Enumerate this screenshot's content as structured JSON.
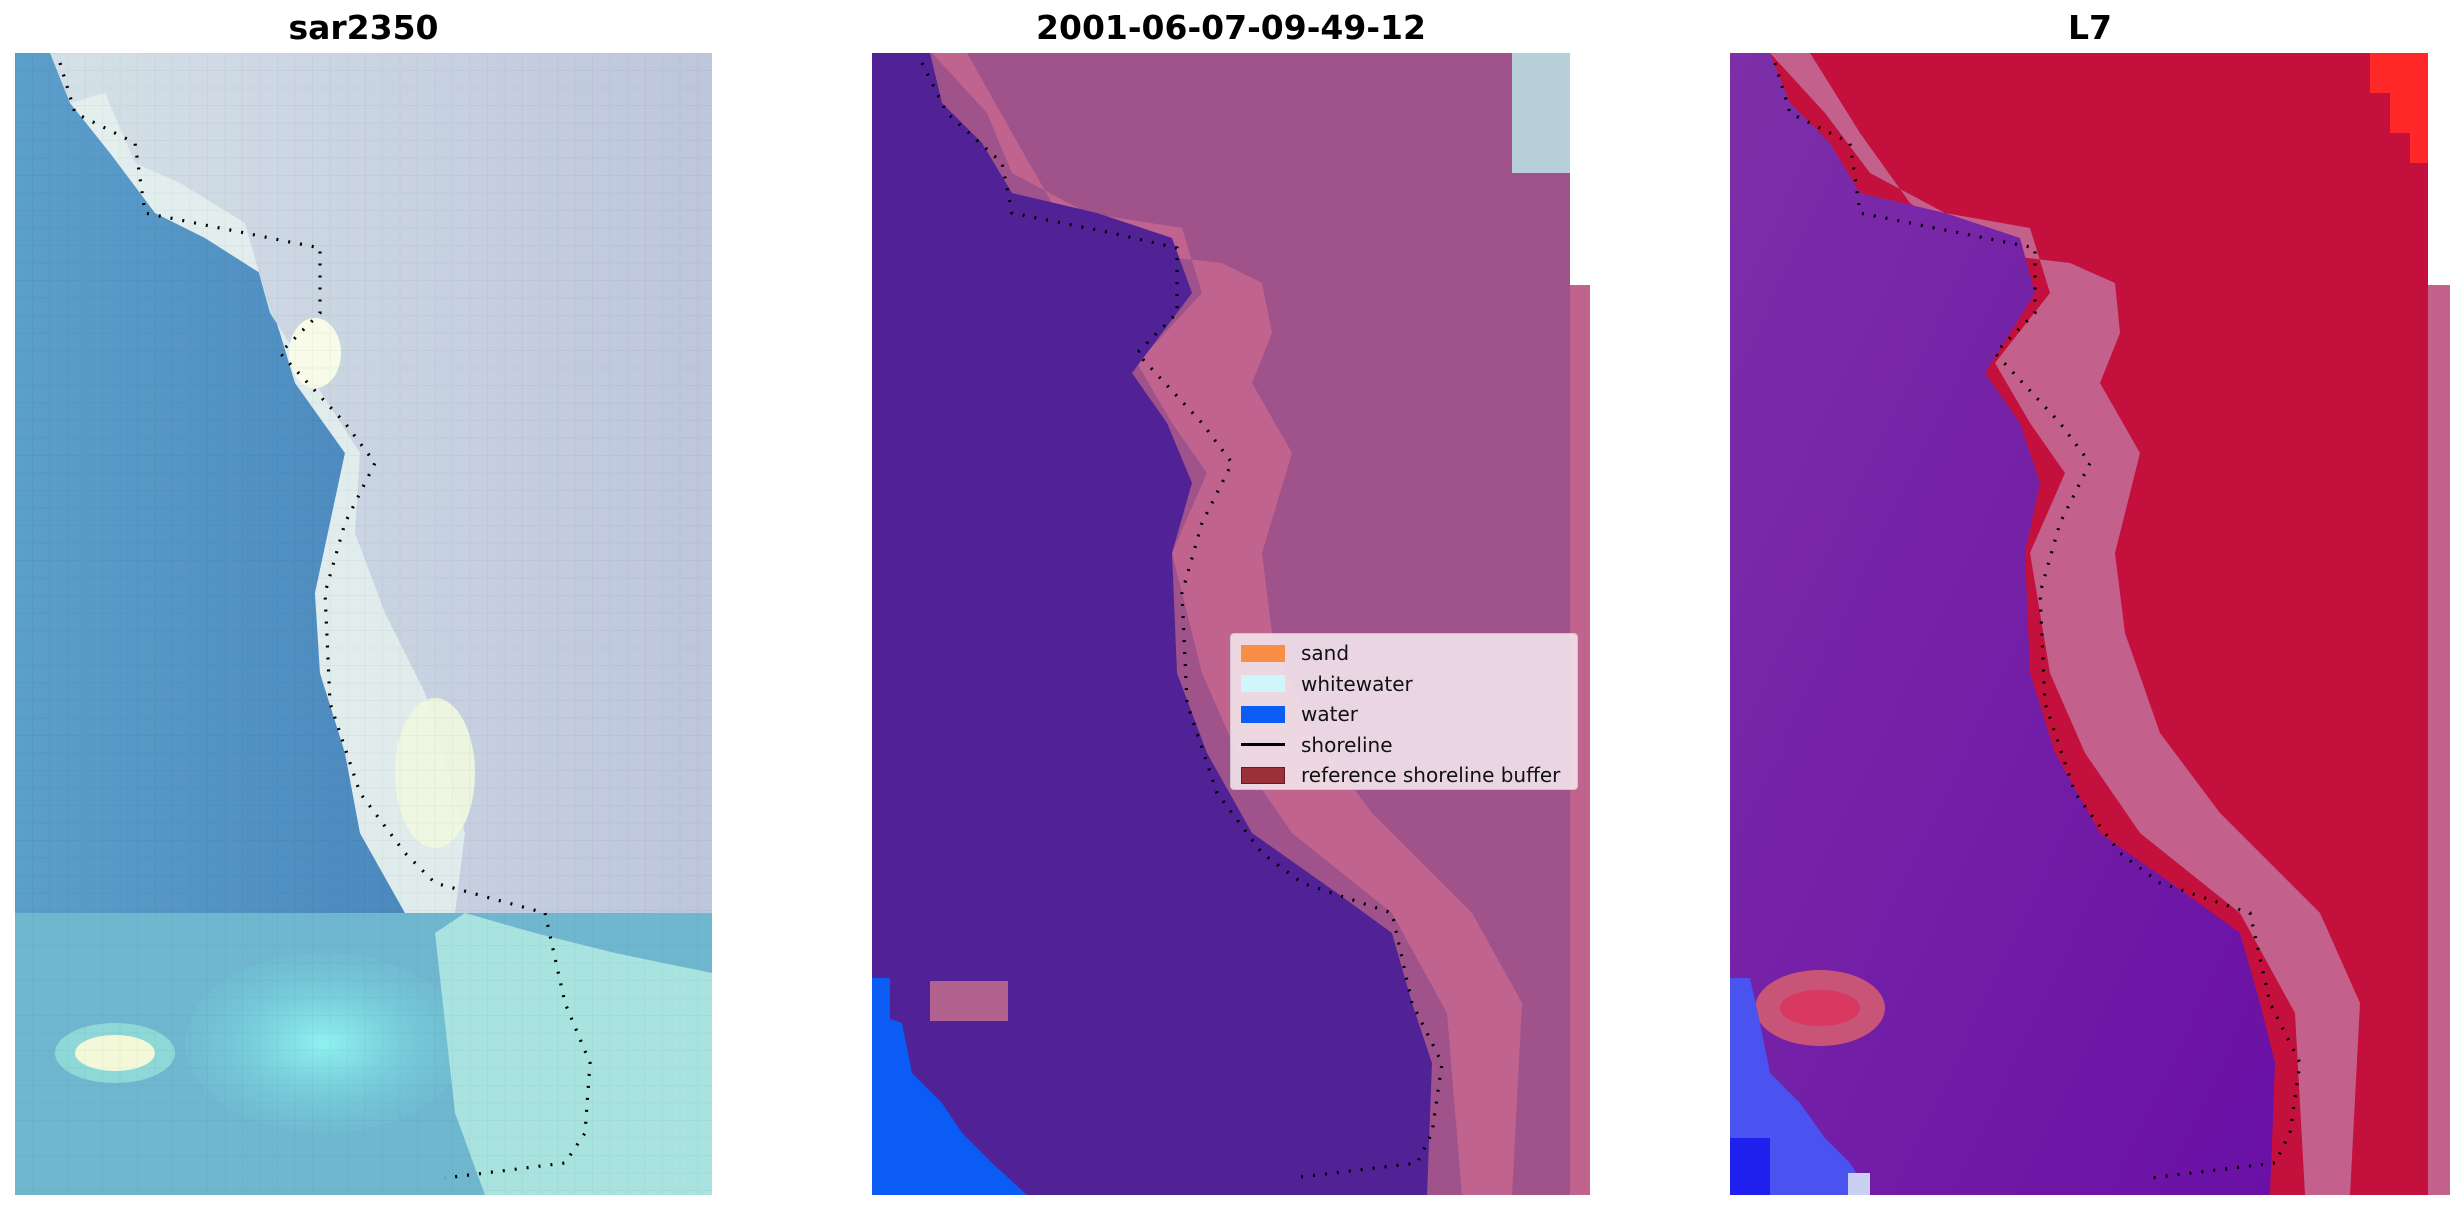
{
  "panels": [
    {
      "title": "sar2350"
    },
    {
      "title": "2001-06-07-09-49-12"
    },
    {
      "title": "L7"
    }
  ],
  "legend": {
    "items": [
      {
        "label": "sand",
        "color": "#f98e44",
        "kind": "patch"
      },
      {
        "label": "whitewater",
        "color": "#cff6fa",
        "kind": "patch"
      },
      {
        "label": "water",
        "color": "#0a5cf5",
        "kind": "patch"
      },
      {
        "label": "shoreline",
        "color": "#000000",
        "kind": "line"
      },
      {
        "label": "reference shoreline buffer",
        "color": "#9a3038",
        "kind": "patch"
      }
    ]
  },
  "colors": {
    "rgb_water": "#4f8fc1",
    "rgb_land": "#c7d1e2",
    "rgb_surf": "#e9f4ea",
    "class_water": "#502296",
    "class_land": "#a0538a",
    "class_buffer": "#c0648f",
    "index_water": "#7328a8",
    "index_land": "#c4103c",
    "index_band": "#c4608c"
  }
}
